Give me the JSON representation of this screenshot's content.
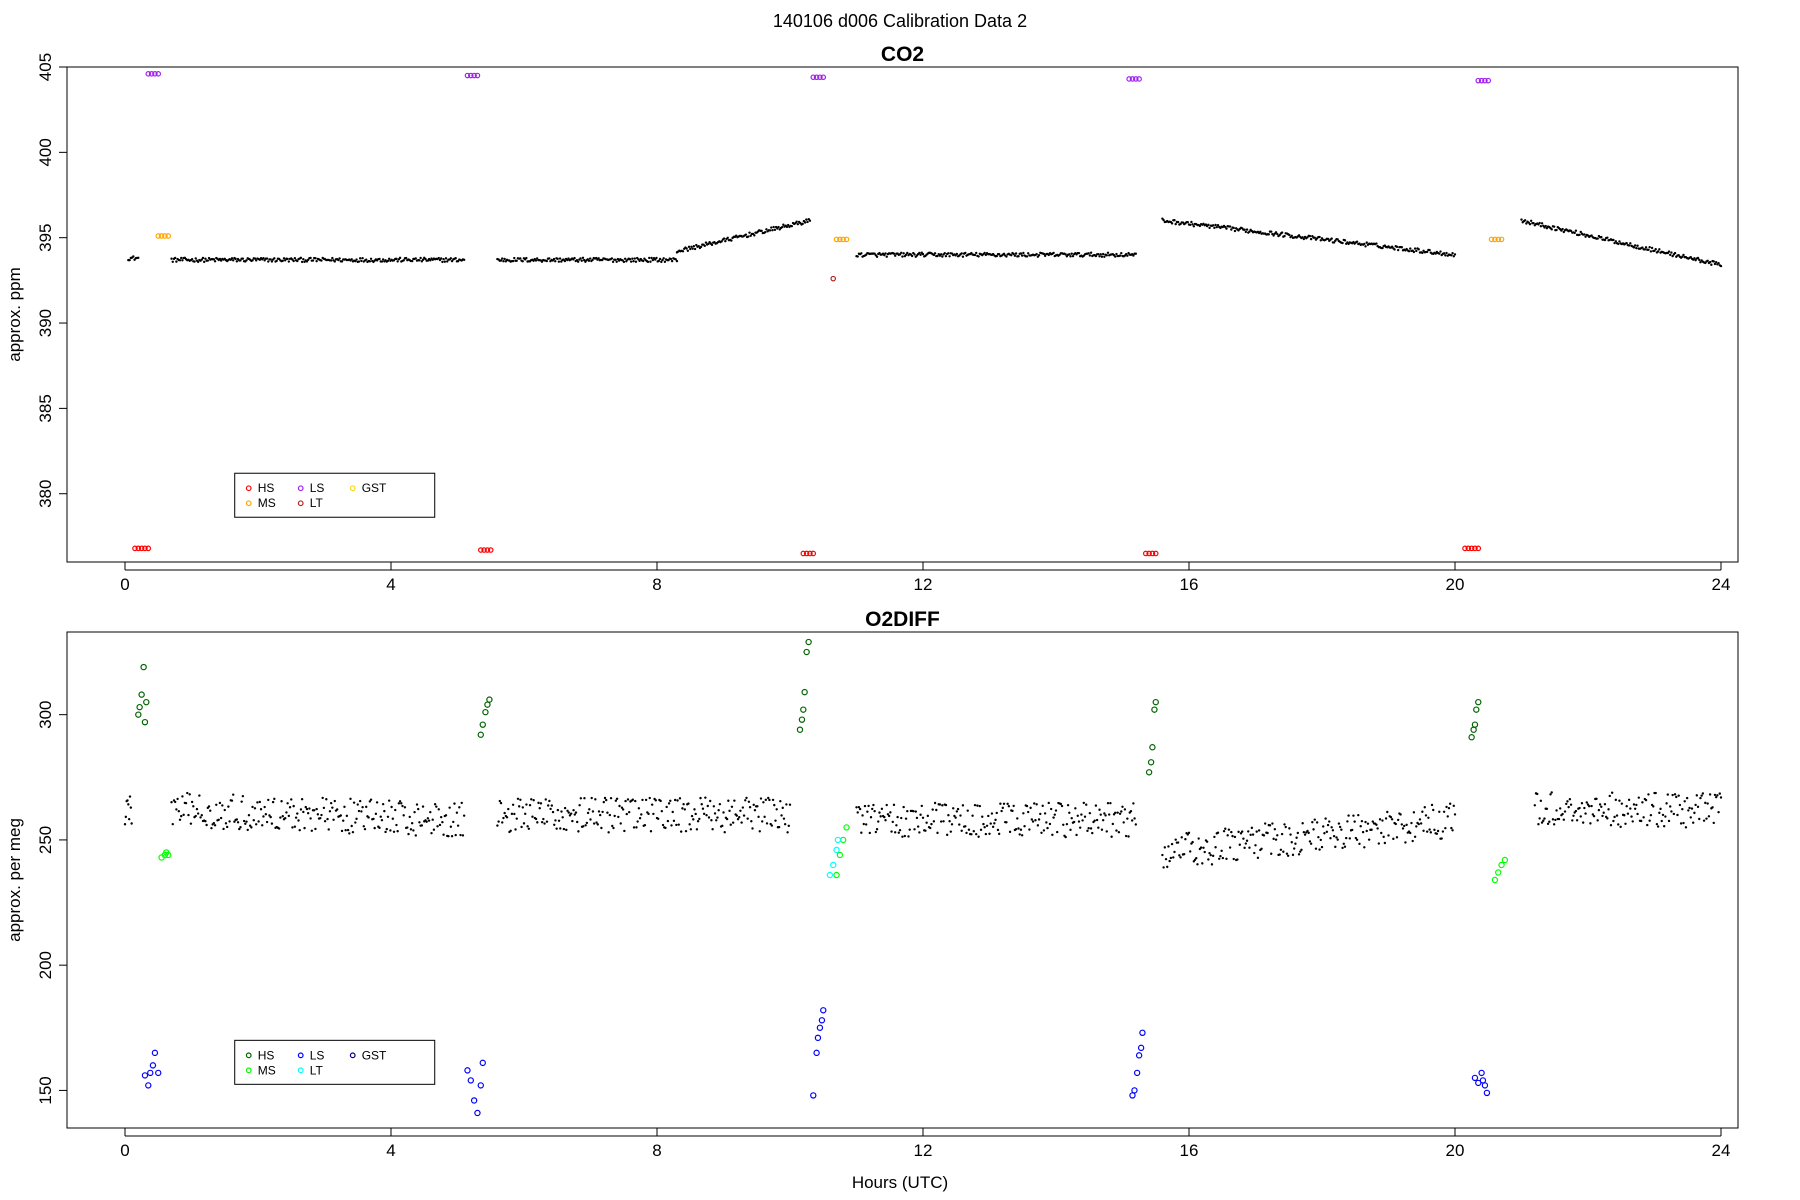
{
  "figure": {
    "suptitle": "140106   d006   Calibration Data 2",
    "xlabel": "Hours (UTC)"
  },
  "chart_data": [
    {
      "type": "scatter",
      "title": "CO2",
      "xlabel": "",
      "ylabel": "approx. ppm",
      "xlim": [
        0,
        24
      ],
      "ylim": [
        376,
        405
      ],
      "x_ticks": [
        0,
        4,
        8,
        12,
        16,
        20,
        24
      ],
      "y_ticks": [
        380,
        385,
        390,
        395,
        400,
        405
      ],
      "grid": false,
      "legend_position": "bottom-left",
      "legend": [
        {
          "name": "HS",
          "color": "#ff0000"
        },
        {
          "name": "MS",
          "color": "#ffa500"
        },
        {
          "name": "LS",
          "color": "#a020f0"
        },
        {
          "name": "LT",
          "color": "#b22222"
        },
        {
          "name": "GST",
          "color": "#ffd700"
        }
      ],
      "background_trace": {
        "description_key": "continuous sample data",
        "color": "#000000",
        "segments": [
          {
            "x": [
              0.05,
              0.2
            ],
            "y": [
              393.8,
              393.8
            ]
          },
          {
            "x": [
              0.7,
              5.1
            ],
            "y": [
              393.7,
              393.7
            ]
          },
          {
            "x": [
              5.6,
              8.3
            ],
            "y": [
              393.7,
              393.7
            ]
          },
          {
            "x": [
              8.3,
              10.3
            ],
            "y": [
              394.2,
              396.0
            ]
          },
          {
            "x": [
              11.0,
              15.2
            ],
            "y": [
              394.0,
              394.0
            ]
          },
          {
            "x": [
              15.6,
              20.0
            ],
            "y": [
              396.0,
              394.0
            ]
          },
          {
            "x": [
              21.0,
              24.0
            ],
            "y": [
              396.0,
              393.4
            ]
          }
        ]
      },
      "series": [
        {
          "name": "HS",
          "x": [
            0.15,
            0.2,
            0.25,
            0.3,
            0.35
          ],
          "y": [
            376.8,
            376.8,
            376.8,
            376.8,
            376.8
          ]
        },
        {
          "name": "HS",
          "x": [
            5.35,
            5.4,
            5.45,
            5.5
          ],
          "y": [
            376.7,
            376.7,
            376.7,
            376.7
          ]
        },
        {
          "name": "HS",
          "x": [
            10.2,
            10.25,
            10.3,
            10.35
          ],
          "y": [
            376.5,
            376.5,
            376.5,
            376.5
          ]
        },
        {
          "name": "HS",
          "x": [
            15.35,
            15.4,
            15.45,
            15.5
          ],
          "y": [
            376.5,
            376.5,
            376.5,
            376.5
          ]
        },
        {
          "name": "HS",
          "x": [
            20.15,
            20.2,
            20.25,
            20.3,
            20.35
          ],
          "y": [
            376.8,
            376.8,
            376.8,
            376.8,
            376.8
          ]
        },
        {
          "name": "MS",
          "x": [
            0.5,
            0.55,
            0.6,
            0.65
          ],
          "y": [
            395.1,
            395.1,
            395.1,
            395.1
          ]
        },
        {
          "name": "MS",
          "x": [
            10.7,
            10.75,
            10.8,
            10.85
          ],
          "y": [
            394.9,
            394.9,
            394.9,
            394.9
          ]
        },
        {
          "name": "MS",
          "x": [
            20.55,
            20.6,
            20.65,
            20.7
          ],
          "y": [
            394.9,
            394.9,
            394.9,
            394.9
          ]
        },
        {
          "name": "LS",
          "x": [
            0.35,
            0.4,
            0.45,
            0.5
          ],
          "y": [
            404.6,
            404.6,
            404.6,
            404.6
          ]
        },
        {
          "name": "LS",
          "x": [
            5.15,
            5.2,
            5.25,
            5.3
          ],
          "y": [
            404.5,
            404.5,
            404.5,
            404.5
          ]
        },
        {
          "name": "LS",
          "x": [
            10.35,
            10.4,
            10.45,
            10.5
          ],
          "y": [
            404.4,
            404.4,
            404.4,
            404.4
          ]
        },
        {
          "name": "LS",
          "x": [
            15.1,
            15.15,
            15.2,
            15.25
          ],
          "y": [
            404.3,
            404.3,
            404.3,
            404.3
          ]
        },
        {
          "name": "LS",
          "x": [
            20.35,
            20.4,
            20.45,
            20.5
          ],
          "y": [
            404.2,
            404.2,
            404.2,
            404.2
          ]
        },
        {
          "name": "LT",
          "x": [
            10.65
          ],
          "y": [
            392.6
          ]
        }
      ]
    },
    {
      "type": "scatter",
      "title": "O2DIFF",
      "xlabel": "Hours (UTC)",
      "ylabel": "approx. per meg",
      "xlim": [
        0,
        24
      ],
      "ylim": [
        135,
        333
      ],
      "x_ticks": [
        0,
        4,
        8,
        12,
        16,
        20,
        24
      ],
      "y_ticks": [
        150,
        200,
        250,
        300
      ],
      "grid": false,
      "legend_position": "bottom-left",
      "legend": [
        {
          "name": "HS",
          "color": "#006400"
        },
        {
          "name": "MS",
          "color": "#00ff00"
        },
        {
          "name": "LS",
          "color": "#0000ff"
        },
        {
          "name": "LT",
          "color": "#00ffff"
        },
        {
          "name": "GST",
          "color": "#00008b"
        }
      ],
      "background_trace": {
        "description_key": "continuous sample data",
        "color": "#000000",
        "segments": [
          {
            "x": [
              0.0,
              0.1
            ],
            "y": [
              262,
              262
            ]
          },
          {
            "x": [
              0.7,
              5.1
            ],
            "y": [
              262,
              258
            ]
          },
          {
            "x": [
              5.6,
              10.0
            ],
            "y": [
              260,
              260
            ]
          },
          {
            "x": [
              11.0,
              15.2
            ],
            "y": [
              258,
              258
            ]
          },
          {
            "x": [
              15.6,
              20.0
            ],
            "y": [
              245,
              258
            ]
          },
          {
            "x": [
              21.2,
              24.0
            ],
            "y": [
              262,
              262
            ]
          }
        ]
      },
      "series": [
        {
          "name": "HS",
          "x": [
            0.2,
            0.22,
            0.25,
            0.28,
            0.3,
            0.32
          ],
          "y": [
            300,
            303,
            308,
            319,
            297,
            305
          ]
        },
        {
          "name": "HS",
          "x": [
            5.35,
            5.38,
            5.42,
            5.45,
            5.48
          ],
          "y": [
            292,
            296,
            301,
            304,
            306
          ]
        },
        {
          "name": "HS",
          "x": [
            10.15,
            10.18,
            10.2,
            10.22,
            10.25,
            10.28
          ],
          "y": [
            294,
            298,
            302,
            309,
            325,
            329
          ]
        },
        {
          "name": "HS",
          "x": [
            15.4,
            15.43,
            15.45,
            15.48,
            15.5
          ],
          "y": [
            277,
            281,
            287,
            302,
            305
          ]
        },
        {
          "name": "HS",
          "x": [
            20.25,
            20.28,
            20.3,
            20.32,
            20.35
          ],
          "y": [
            291,
            294,
            296,
            302,
            305
          ]
        },
        {
          "name": "MS",
          "x": [
            0.55,
            0.6,
            0.62,
            0.65
          ],
          "y": [
            243,
            244,
            245,
            244
          ]
        },
        {
          "name": "MS",
          "x": [
            10.7,
            10.75,
            10.8,
            10.85
          ],
          "y": [
            236,
            244,
            250,
            255
          ]
        },
        {
          "name": "MS",
          "x": [
            20.6,
            20.65,
            20.7,
            20.75
          ],
          "y": [
            234,
            237,
            240,
            242
          ]
        },
        {
          "name": "LS",
          "x": [
            0.3,
            0.35,
            0.38,
            0.42,
            0.45,
            0.5
          ],
          "y": [
            156,
            152,
            157,
            160,
            165,
            157
          ]
        },
        {
          "name": "LS",
          "x": [
            5.15,
            5.2,
            5.25,
            5.3,
            5.35,
            5.38
          ],
          "y": [
            158,
            154,
            146,
            141,
            152,
            161
          ]
        },
        {
          "name": "LS",
          "x": [
            10.35,
            10.4,
            10.42,
            10.45,
            10.48,
            10.5
          ],
          "y": [
            148,
            165,
            171,
            175,
            178,
            182
          ]
        },
        {
          "name": "LS",
          "x": [
            15.15,
            15.18,
            15.22,
            15.25,
            15.28,
            15.3
          ],
          "y": [
            148,
            150,
            157,
            164,
            167,
            173
          ]
        },
        {
          "name": "LS",
          "x": [
            20.3,
            20.35,
            20.4,
            20.42,
            20.45,
            20.48
          ],
          "y": [
            155,
            153,
            157,
            154,
            152,
            149
          ]
        },
        {
          "name": "LT",
          "x": [
            10.6,
            10.65,
            10.7,
            10.72
          ],
          "y": [
            236,
            240,
            246,
            250
          ]
        }
      ]
    }
  ]
}
